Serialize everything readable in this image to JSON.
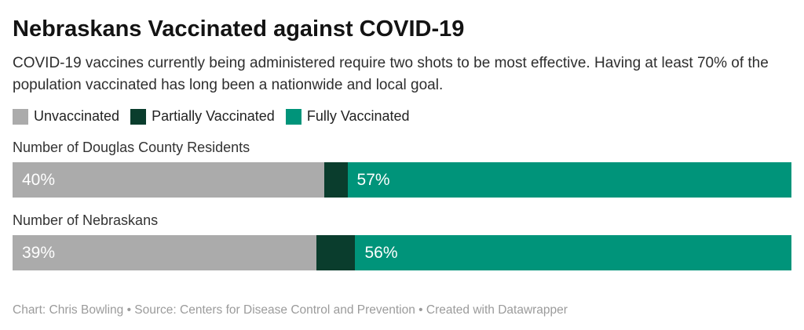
{
  "header": {
    "title": "Nebraskans Vaccinated against COVID-19",
    "description": "COVID-19 vaccines currently being administered require two shots to be most effective. Having at least 70% of the population vaccinated has long been a nationwide and local goal."
  },
  "legend": [
    {
      "label": "Unvaccinated",
      "color": "#ababab"
    },
    {
      "label": "Partially Vaccinated",
      "color": "#0a3d2d"
    },
    {
      "label": "Fully Vaccinated",
      "color": "#00947a"
    }
  ],
  "chart_data": {
    "type": "bar",
    "stacked": true,
    "orientation": "horizontal",
    "title": "Nebraskans Vaccinated against COVID-19",
    "categories": [
      "Number of Douglas County Residents",
      "Number of Nebraskans"
    ],
    "series": [
      {
        "name": "Unvaccinated",
        "color": "#ababab",
        "values": [
          40,
          39
        ]
      },
      {
        "name": "Partially Vaccinated",
        "color": "#0a3d2d",
        "values": [
          3,
          5
        ]
      },
      {
        "name": "Fully Vaccinated",
        "color": "#00947a",
        "values": [
          57,
          56
        ]
      }
    ],
    "value_labels": [
      [
        "40%",
        "",
        "57%"
      ],
      [
        "39%",
        "",
        "56%"
      ]
    ],
    "xlim": [
      0,
      100
    ],
    "grid": false,
    "legend_position": "top"
  },
  "footer": {
    "credit": "Chart: Chris Bowling • Source: Centers for Disease Control and Prevention • Created with Datawrapper"
  }
}
